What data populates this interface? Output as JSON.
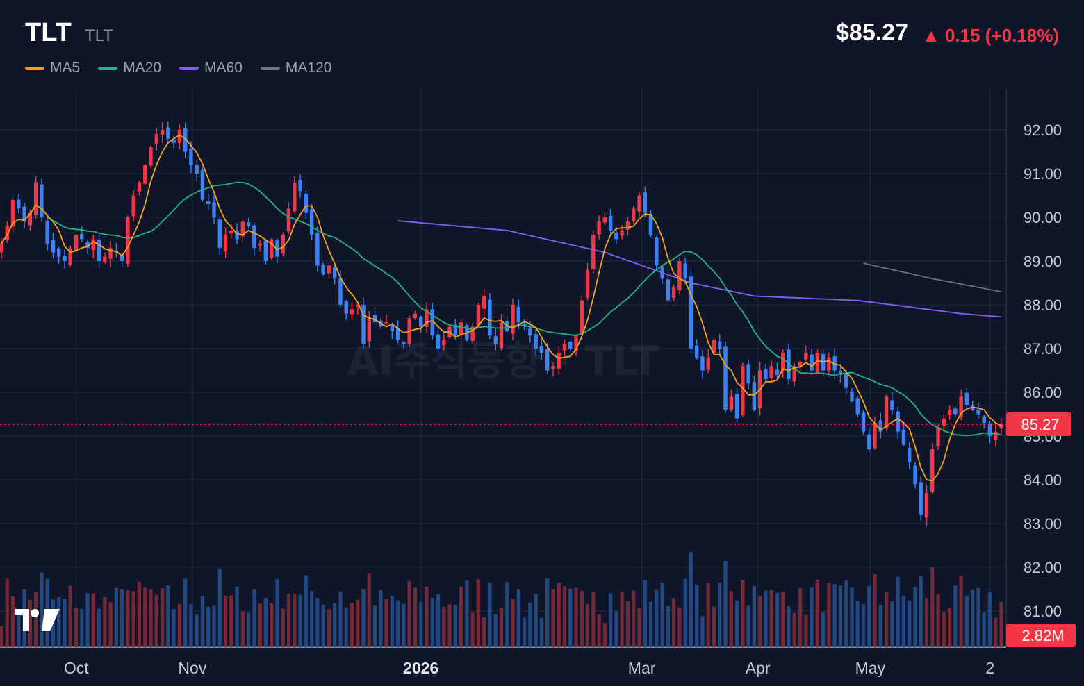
{
  "header": {
    "symbol": "TLT",
    "subtitle": "TLT",
    "price": "$85.27",
    "change": "▲ 0.15 (+0.18%)",
    "change_color": "#f23645"
  },
  "legend": [
    {
      "label": "MA5",
      "color": "#f7a21b"
    },
    {
      "label": "MA20",
      "color": "#1fb584"
    },
    {
      "label": "MA60",
      "color": "#8b5cf6"
    },
    {
      "label": "MA120",
      "color": "#6b7280"
    }
  ],
  "watermark": "AI주식동향 · TLT",
  "price_tag": "85.27",
  "volume_tag": "2.82M",
  "logo_icon": "tradingview-logo-icon",
  "colors": {
    "up": "#f23645",
    "down": "#3b82f6",
    "background": "#0f1629",
    "grid": "#1e2a3d"
  },
  "chart_data": {
    "type": "candlestick",
    "y_axis": {
      "ticks": [
        "92.00",
        "91.00",
        "90.00",
        "89.00",
        "88.00",
        "87.00",
        "86.00",
        "85.00",
        "84.00",
        "83.00",
        "82.00",
        "81.00"
      ],
      "range": [
        80.8,
        92.9
      ],
      "side": "right"
    },
    "x_axis": {
      "labels": [
        "Oct",
        "Nov",
        "2026",
        "Mar",
        "Apr",
        "May",
        "2"
      ],
      "bold_labels": [
        "2026"
      ]
    },
    "x_label_dates": [
      "2025-10-01",
      "2025-11-01",
      "2026-01-01",
      "2026-03-01",
      "2026-04-01",
      "2026-05-01",
      "2026-06-02"
    ],
    "first_date": "2025-09-11",
    "last_price": 85.27,
    "last_volume": "2.82M",
    "closes": [
      89.4,
      89.8,
      90.4,
      90.2,
      89.9,
      90.1,
      90.8,
      90.0,
      89.4,
      89.2,
      89.1,
      89.0,
      89.3,
      89.6,
      89.5,
      89.3,
      89.5,
      89.0,
      89.1,
      89.3,
      89.2,
      89.0,
      90.0,
      90.5,
      90.8,
      91.2,
      91.6,
      91.9,
      92.0,
      91.8,
      91.7,
      92.0,
      91.5,
      91.2,
      91.0,
      90.4,
      90.3,
      90.0,
      89.3,
      89.6,
      89.7,
      89.5,
      89.9,
      89.8,
      89.3,
      89.4,
      89.0,
      89.5,
      89.1,
      89.6,
      90.2,
      90.8,
      90.6,
      90.1,
      89.6,
      88.9,
      88.7,
      88.9,
      88.6,
      88.0,
      87.8,
      87.9,
      88.0,
      87.1,
      87.7,
      87.6,
      87.5,
      87.6,
      87.4,
      87.2,
      87.1,
      87.7,
      87.8,
      87.5,
      87.9,
      87.3,
      87.0,
      87.2,
      87.5,
      87.3,
      87.6,
      87.2,
      87.5,
      88.0,
      88.2,
      87.3,
      87.1,
      87.6,
      87.4,
      88.0,
      87.6,
      87.5,
      87.3,
      87.0,
      86.9,
      86.5,
      86.6,
      86.9,
      87.1,
      87.0,
      87.3,
      88.1,
      88.8,
      89.6,
      89.9,
      90.0,
      89.7,
      89.5,
      89.7,
      89.9,
      90.2,
      90.5,
      90.1,
      89.6,
      88.9,
      88.6,
      88.1,
      88.4,
      89.0,
      88.6,
      87.0,
      86.8,
      86.5,
      86.8,
      87.2,
      87.0,
      85.6,
      85.9,
      85.4,
      86.6,
      86.2,
      85.6,
      86.5,
      86.3,
      86.6,
      86.4,
      86.9,
      86.3,
      86.6,
      86.7,
      86.9,
      86.5,
      86.9,
      86.5,
      86.8,
      86.5,
      86.4,
      86.1,
      85.8,
      85.5,
      85.1,
      84.7,
      85.3,
      85.1,
      85.9,
      85.6,
      85.1,
      84.8,
      84.4,
      83.9,
      83.2,
      83.7,
      84.7,
      85.2,
      85.4,
      85.6,
      85.5,
      85.9,
      85.7,
      85.6,
      85.5,
      85.3,
      85.0,
      85.1,
      85.27
    ],
    "ma_series": [
      {
        "name": "MA5",
        "period": 5,
        "color": "#f7a21b"
      },
      {
        "name": "MA20",
        "period": 20,
        "color": "#1fb584"
      },
      {
        "name": "MA60",
        "period": 60,
        "color": "#8b5cf6"
      },
      {
        "name": "MA120",
        "period": 120,
        "color": "#6b7280"
      }
    ],
    "ma60_anchors": [
      [
        69,
        89.92
      ],
      [
        88,
        89.7
      ],
      [
        105,
        89.2
      ],
      [
        120,
        88.5
      ],
      [
        131,
        88.2
      ],
      [
        149,
        88.1
      ],
      [
        167,
        87.8
      ],
      [
        190,
        87.55
      ],
      [
        208,
        87.1
      ],
      [
        221,
        86.55
      ],
      [
        230,
        85.9
      ]
    ],
    "ma120_anchors": [
      [
        150,
        88.95
      ],
      [
        162,
        88.6
      ],
      [
        182,
        88.1
      ],
      [
        197,
        87.75
      ],
      [
        214,
        87.2
      ],
      [
        230,
        87.0
      ]
    ],
    "gridlines": true,
    "legend_position": "top-left"
  }
}
